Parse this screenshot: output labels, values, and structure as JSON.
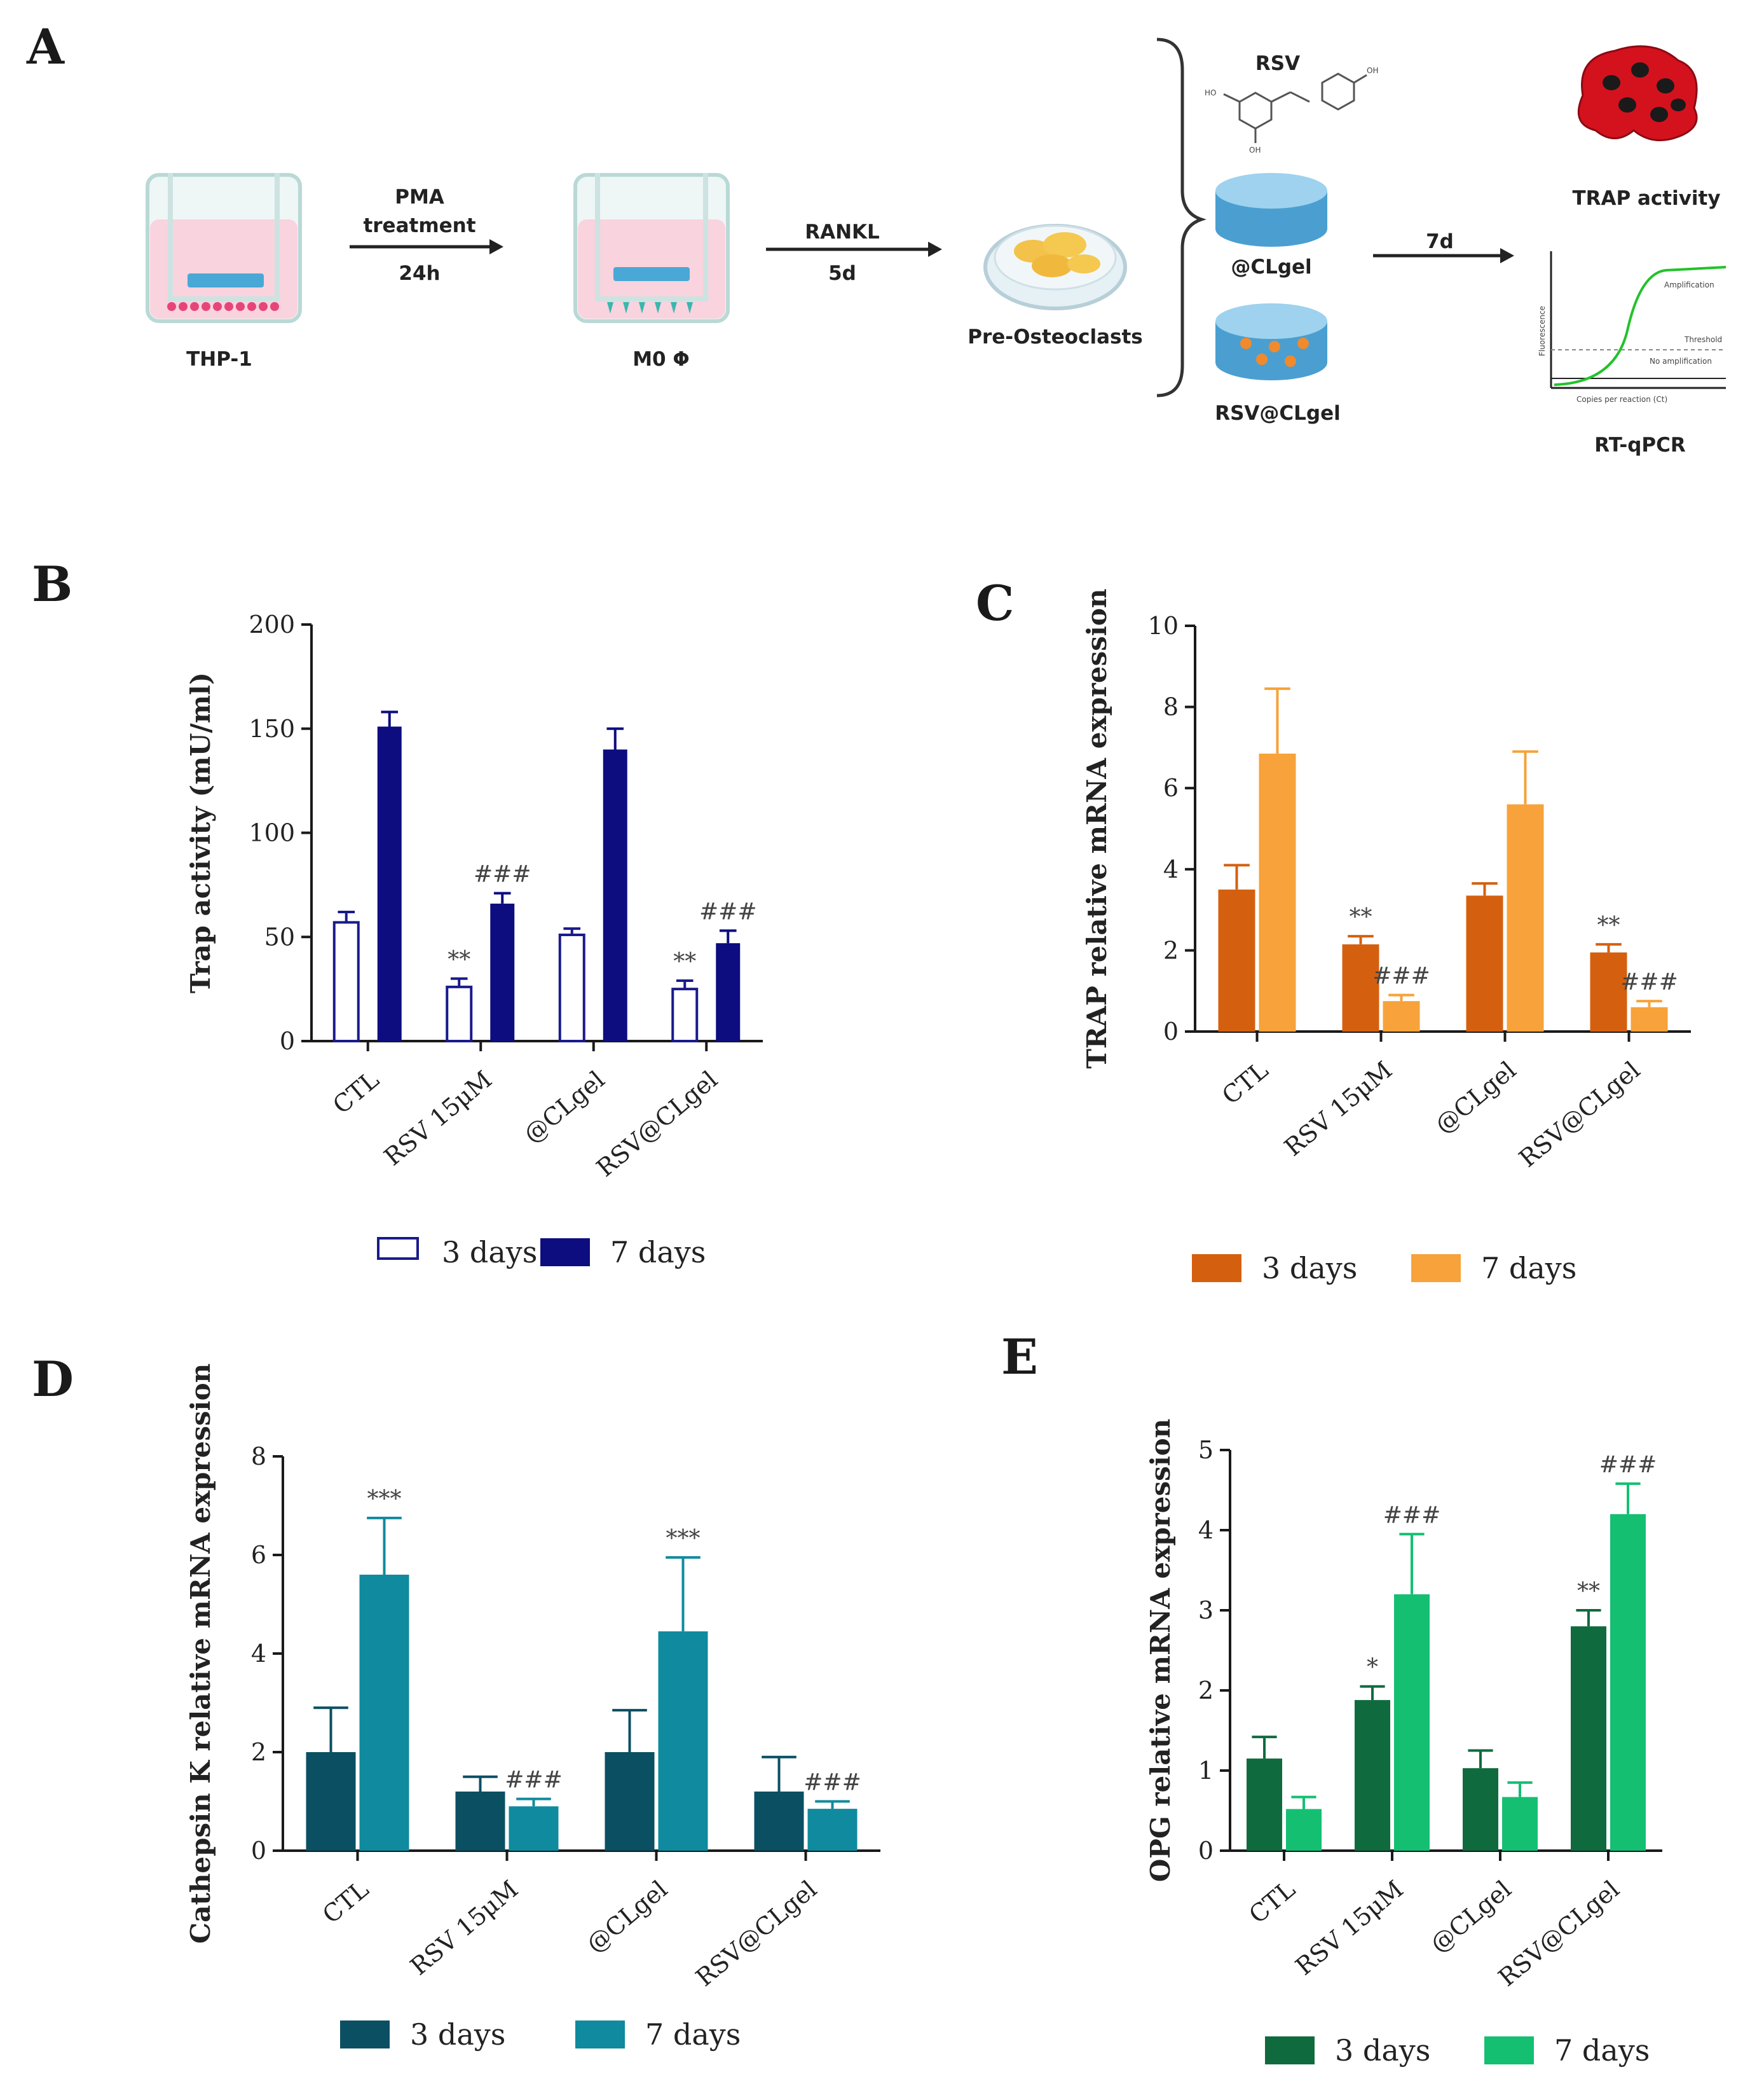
{
  "panels": {
    "a": "A",
    "b": "B",
    "c": "C",
    "d": "D",
    "e": "E"
  },
  "schematic": {
    "thp1": "THP-1",
    "pma": "PMA",
    "treatment": "treatment",
    "h24": "24h",
    "m0": "M0 Φ",
    "rankl": "RANKL",
    "d5": "5d",
    "preosteo": "Pre-Osteoclasts",
    "rsv": "RSV",
    "clgel": "@CLgel",
    "rsvclgel": "RSV@CLgel",
    "d7": "7d",
    "trap_activity": "TRAP activity",
    "rtqpcr": "RT-qPCR",
    "amplification": "Amplification",
    "threshold": "Threshold",
    "no_amplification": "No amplification",
    "fluorescence": "Fluorescence",
    "copies": "Copies per reaction (Ct)",
    "oh1": "HO",
    "oh2": "OH",
    "oh3": "OH"
  },
  "colors": {
    "b3": "#ffffff",
    "b3stroke": "#1a1a8c",
    "b7": "#0d0d80",
    "c3": "#d4600f",
    "c7": "#f7a23a",
    "d3": "#0b4f63",
    "d7": "#0f8a9e",
    "e3": "#0f6b3e",
    "e7": "#14bf72"
  },
  "chart_data": [
    {
      "id": "b",
      "type": "bar",
      "title": "",
      "ylabel": "Trap activity (mU/ml)",
      "categories": [
        "CTL",
        "RSV 15μM",
        "@CLgel",
        "RSV@CLgel"
      ],
      "ylim": [
        0,
        200
      ],
      "yticks": [
        "0",
        "50",
        "100",
        "150",
        "200"
      ],
      "series": [
        {
          "name": "3 days",
          "values": [
            57,
            26,
            51,
            25
          ],
          "errors": [
            5,
            4,
            3,
            4
          ],
          "sig": [
            "",
            "**",
            "",
            "**"
          ]
        },
        {
          "name": "7 days",
          "values": [
            151,
            66,
            140,
            47
          ],
          "errors": [
            7,
            5,
            10,
            6
          ],
          "sig": [
            "",
            "###",
            "",
            "###"
          ]
        }
      ]
    },
    {
      "id": "c",
      "type": "bar",
      "title": "",
      "ylabel": "TRAP relative mRNA expression",
      "categories": [
        "CTL",
        "RSV 15μM",
        "@CLgel",
        "RSV@CLgel"
      ],
      "ylim": [
        0,
        10
      ],
      "yticks": [
        "0",
        "2",
        "4",
        "6",
        "8",
        "10"
      ],
      "series": [
        {
          "name": "3 days",
          "values": [
            3.5,
            2.15,
            3.35,
            1.95
          ],
          "errors": [
            0.6,
            0.2,
            0.3,
            0.2
          ],
          "sig": [
            "",
            "**",
            "",
            "**"
          ]
        },
        {
          "name": "7 days",
          "values": [
            6.85,
            0.75,
            5.6,
            0.6
          ],
          "errors": [
            1.6,
            0.15,
            1.3,
            0.15
          ],
          "sig": [
            "",
            "###",
            "",
            "###"
          ]
        }
      ]
    },
    {
      "id": "d",
      "type": "bar",
      "title": "",
      "ylabel": "Cathepsin K relative mRNA expression",
      "categories": [
        "CTL",
        "RSV 15μM",
        "@CLgel",
        "RSV@CLgel"
      ],
      "ylim": [
        0,
        8
      ],
      "yticks": [
        "0",
        "2",
        "4",
        "6",
        "8"
      ],
      "series": [
        {
          "name": "3 days",
          "values": [
            2.0,
            1.2,
            2.0,
            1.2
          ],
          "errors": [
            0.9,
            0.3,
            0.85,
            0.7
          ],
          "sig": [
            "",
            "",
            "",
            ""
          ]
        },
        {
          "name": "7 days",
          "values": [
            5.6,
            0.9,
            4.45,
            0.85
          ],
          "errors": [
            1.15,
            0.15,
            1.5,
            0.15
          ],
          "sig": [
            "***",
            "###",
            "***",
            "###"
          ]
        }
      ]
    },
    {
      "id": "e",
      "type": "bar",
      "title": "",
      "ylabel": "OPG relative mRNA expression",
      "categories": [
        "CTL",
        "RSV 15μM",
        "@CLgel",
        "RSV@CLgel"
      ],
      "ylim": [
        0,
        5
      ],
      "yticks": [
        "0",
        "1",
        "2",
        "3",
        "4",
        "5"
      ],
      "series": [
        {
          "name": "3 days",
          "values": [
            1.15,
            1.88,
            1.03,
            2.8
          ],
          "errors": [
            0.27,
            0.17,
            0.22,
            0.2
          ],
          "sig": [
            "",
            "*",
            "",
            "**"
          ]
        },
        {
          "name": "7 days",
          "values": [
            0.52,
            3.2,
            0.67,
            4.2
          ],
          "errors": [
            0.15,
            0.75,
            0.18,
            0.38
          ],
          "sig": [
            "",
            "###",
            "",
            "###"
          ]
        }
      ]
    }
  ]
}
